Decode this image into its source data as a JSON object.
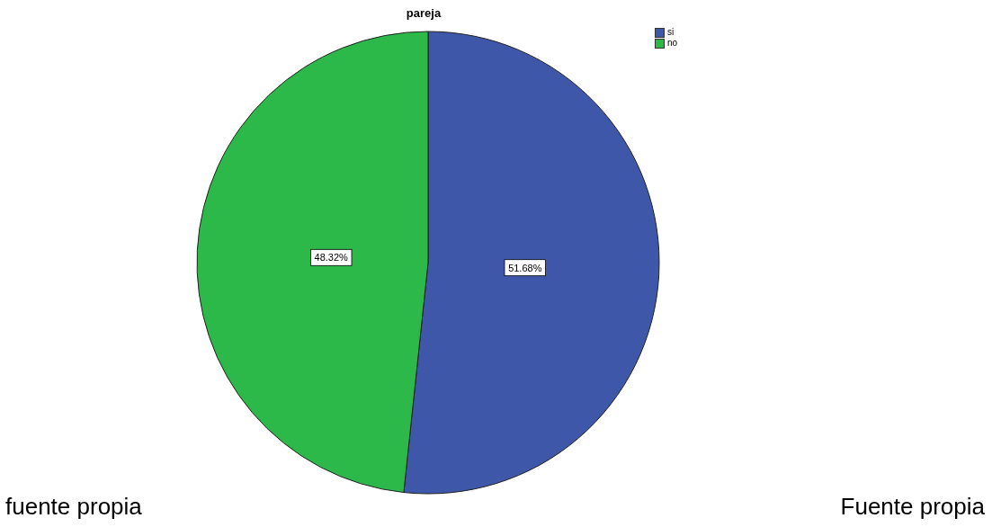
{
  "chart_data": {
    "type": "pie",
    "title": "pareja",
    "categories": [
      "si",
      "no"
    ],
    "values": [
      51.68,
      48.32
    ],
    "colors": [
      "#3f57a8",
      "#2db84a"
    ],
    "value_labels": [
      "51.68%",
      "48.32%"
    ],
    "legend": "top right",
    "annotations": [
      "fuente propia",
      "Fuente propia"
    ]
  }
}
